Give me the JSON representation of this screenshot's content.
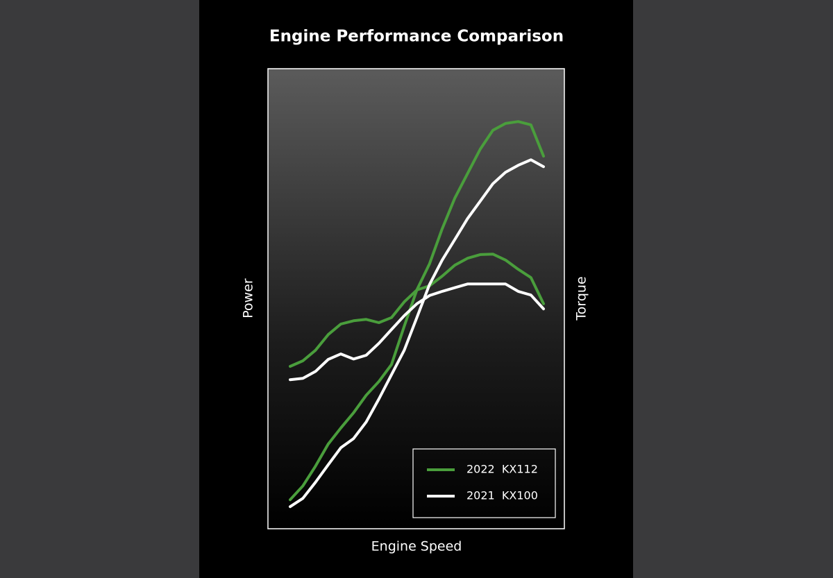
{
  "chart_data": {
    "type": "line",
    "title": "Engine Performance Comparison",
    "x_label": "Engine Speed",
    "y_label": "Power",
    "y2_label": "Torque",
    "x": [
      0,
      5,
      10,
      15,
      20,
      25,
      30,
      35,
      40,
      45,
      50,
      55,
      60,
      65,
      70,
      75,
      80,
      85,
      90,
      95,
      100
    ],
    "xlim": [
      0,
      100
    ],
    "ylim": [
      0,
      100
    ],
    "y2lim": [
      0,
      100
    ],
    "grid": false,
    "legend": "lower right",
    "series": [
      {
        "name": "2022  KX112",
        "color": "#4a9e3c",
        "power": [
          6.3,
          9.3,
          13.6,
          18.4,
          21.9,
          25.2,
          29.0,
          32.0,
          35.7,
          44.0,
          51.9,
          57.6,
          65.2,
          71.9,
          77.2,
          82.5,
          86.6,
          88.1,
          88.5,
          87.8,
          81.0
        ],
        "torque": [
          35.3,
          36.5,
          38.8,
          42.2,
          44.5,
          45.2,
          45.5,
          44.8,
          45.9,
          49.3,
          51.9,
          52.8,
          54.9,
          57.3,
          58.8,
          59.6,
          59.7,
          58.4,
          56.4,
          54.6,
          48.9
        ]
      },
      {
        "name": "2021  KX100",
        "color": "#ffffff",
        "power": [
          4.8,
          6.6,
          10.1,
          13.9,
          17.6,
          19.6,
          23.2,
          28.2,
          33.5,
          38.8,
          45.9,
          53.1,
          58.4,
          62.9,
          67.4,
          71.2,
          75.0,
          77.5,
          79.0,
          80.2,
          78.7
        ],
        "torque": [
          32.4,
          32.7,
          34.2,
          36.8,
          38.0,
          36.9,
          37.7,
          40.3,
          43.3,
          46.3,
          48.9,
          50.7,
          51.6,
          52.4,
          53.2,
          53.2,
          53.2,
          53.2,
          51.6,
          50.8,
          47.8
        ]
      }
    ]
  }
}
